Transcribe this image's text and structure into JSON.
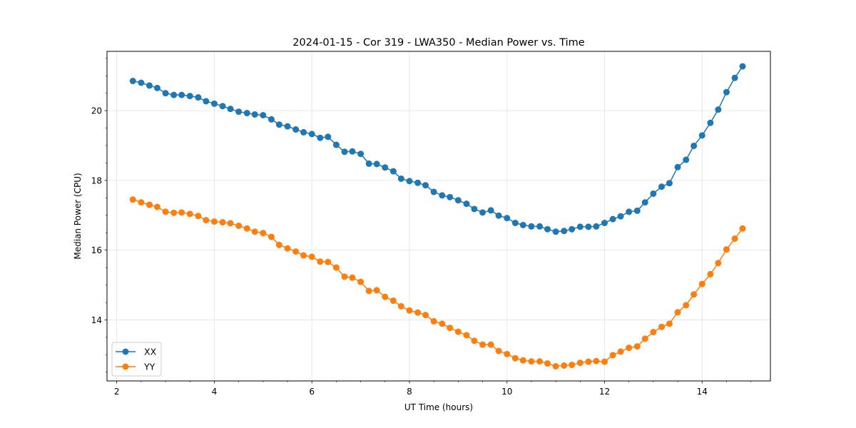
{
  "chart_data": {
    "type": "line",
    "title": "2024-01-15 - Cor 319 - LWA350 - Median Power vs. Time",
    "xlabel": "UT Time (hours)",
    "ylabel": "Median Power (CPU)",
    "xlim": [
      1.8,
      15.4
    ],
    "ylim": [
      12.25,
      21.7
    ],
    "xticks": [
      2,
      4,
      6,
      8,
      10,
      12,
      14
    ],
    "yticks": [
      14,
      16,
      18,
      20
    ],
    "grid": true,
    "legend_position": "lower-left",
    "x": [
      2.33,
      2.5,
      2.67,
      2.83,
      3.0,
      3.17,
      3.33,
      3.5,
      3.67,
      3.83,
      4.0,
      4.17,
      4.33,
      4.5,
      4.67,
      4.83,
      5.0,
      5.17,
      5.33,
      5.5,
      5.67,
      5.83,
      6.0,
      6.17,
      6.33,
      6.5,
      6.67,
      6.83,
      7.0,
      7.17,
      7.33,
      7.5,
      7.67,
      7.83,
      8.0,
      8.17,
      8.33,
      8.5,
      8.67,
      8.83,
      9.0,
      9.17,
      9.33,
      9.5,
      9.67,
      9.83,
      10.0,
      10.17,
      10.33,
      10.5,
      10.67,
      10.83,
      11.0,
      11.17,
      11.33,
      11.5,
      11.67,
      11.83,
      12.0,
      12.17,
      12.33,
      12.5,
      12.67,
      12.83,
      13.0,
      13.17,
      13.33,
      13.5,
      13.67,
      13.83,
      14.0,
      14.17,
      14.33,
      14.5,
      14.67,
      14.83
    ],
    "series": [
      {
        "name": "XX",
        "color": "#1f77b4",
        "values": [
          20.85,
          20.8,
          20.72,
          20.65,
          20.5,
          20.45,
          20.45,
          20.42,
          20.38,
          20.27,
          20.2,
          20.13,
          20.05,
          19.97,
          19.93,
          19.89,
          19.87,
          19.75,
          19.6,
          19.55,
          19.46,
          19.38,
          19.33,
          19.22,
          19.25,
          19.02,
          18.82,
          18.83,
          18.76,
          18.48,
          18.47,
          18.37,
          18.26,
          18.05,
          17.98,
          17.93,
          17.86,
          17.67,
          17.57,
          17.52,
          17.43,
          17.33,
          17.18,
          17.08,
          17.14,
          16.99,
          16.92,
          16.78,
          16.72,
          16.68,
          16.68,
          16.6,
          16.53,
          16.55,
          16.6,
          16.67,
          16.67,
          16.68,
          16.78,
          16.89,
          16.97,
          17.1,
          17.13,
          17.37,
          17.62,
          17.82,
          17.92,
          18.38,
          18.59,
          18.99,
          19.29,
          19.65,
          20.03,
          20.53,
          20.94,
          21.27
        ]
      },
      {
        "name": "YY",
        "color": "#ff7f0e",
        "values": [
          17.45,
          17.37,
          17.3,
          17.24,
          17.1,
          17.07,
          17.08,
          17.04,
          16.98,
          16.86,
          16.82,
          16.8,
          16.77,
          16.7,
          16.62,
          16.53,
          16.49,
          16.38,
          16.15,
          16.05,
          15.96,
          15.85,
          15.81,
          15.67,
          15.66,
          15.5,
          15.24,
          15.21,
          15.09,
          14.83,
          14.85,
          14.66,
          14.55,
          14.39,
          14.27,
          14.21,
          14.14,
          13.96,
          13.89,
          13.77,
          13.66,
          13.56,
          13.4,
          13.29,
          13.29,
          13.11,
          13.02,
          12.9,
          12.84,
          12.81,
          12.81,
          12.75,
          12.67,
          12.69,
          12.71,
          12.77,
          12.8,
          12.82,
          12.8,
          12.99,
          13.09,
          13.2,
          13.24,
          13.46,
          13.65,
          13.8,
          13.89,
          14.22,
          14.42,
          14.73,
          15.03,
          15.31,
          15.63,
          16.02,
          16.33,
          16.62
        ]
      }
    ]
  }
}
